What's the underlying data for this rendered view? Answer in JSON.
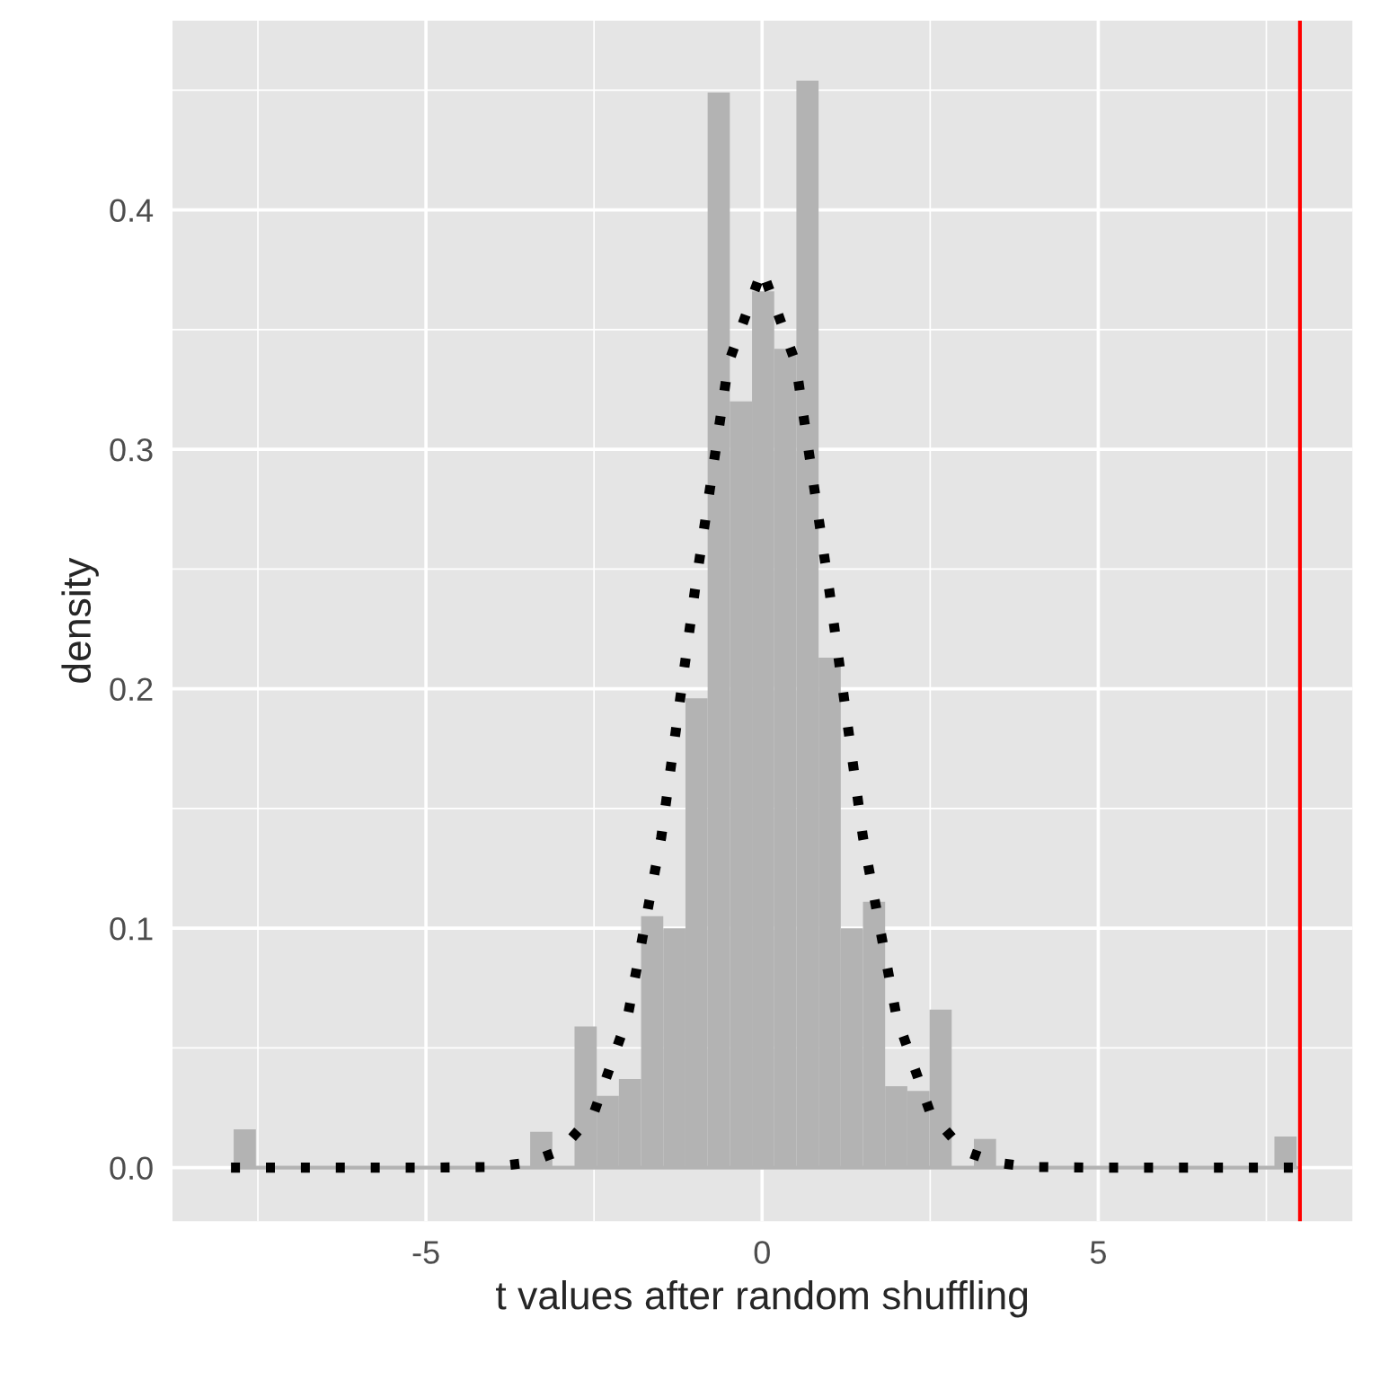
{
  "chart_data": {
    "type": "histogram",
    "xlabel": "t values after random shuffling",
    "ylabel": "density",
    "series": [
      {
        "color": "#b3b3b3",
        "bins": [
          -7.86,
          -7.53,
          -3.45,
          -3.12,
          -2.79,
          -2.46,
          -2.13,
          -1.8,
          -1.47,
          -1.14,
          -0.81,
          -0.48,
          -0.15,
          0.18,
          0.51,
          0.84,
          1.17,
          1.5,
          1.83,
          2.16,
          2.49,
          2.82,
          3.15,
          3.48,
          7.62,
          7.95
        ],
        "values": [
          0.016,
          0,
          0.015,
          0,
          0.059,
          0.03,
          0.037,
          0.105,
          0.1,
          0.196,
          0.449,
          0.32,
          0.366,
          0.342,
          0.454,
          0.213,
          0.1,
          0.111,
          0.034,
          0.032,
          0.066,
          0,
          0.012,
          0,
          0.013
        ]
      },
      {
        "type": "line",
        "color": "#000000",
        "line_style": "dotted",
        "x": [
          -7.9,
          -5,
          -4,
          -3.5,
          -3,
          -2.5,
          -2,
          -1.5,
          -1,
          -0.5,
          0,
          0.5,
          1,
          1.5,
          2,
          2.5,
          3,
          3.5,
          4,
          5,
          7.95
        ],
        "values": [
          0,
          0,
          0.0003,
          0.002,
          0.007,
          0.023,
          0.063,
          0.138,
          0.241,
          0.336,
          0.375,
          0.336,
          0.241,
          0.138,
          0.063,
          0.023,
          0.007,
          0.002,
          0.0003,
          0,
          0
        ]
      }
    ],
    "ref_lines": [
      {
        "axis": "x",
        "value": 8,
        "color": "#ff0000"
      }
    ],
    "xlim": [
      -8.77,
      8.78
    ],
    "ylim": [
      -0.0224,
      0.479
    ],
    "xticks": [
      {
        "value": -5,
        "label": "-5"
      },
      {
        "value": 0,
        "label": "0"
      },
      {
        "value": 5,
        "label": "5"
      }
    ],
    "yticks": [
      {
        "value": 0,
        "label": "0.0"
      },
      {
        "value": 0.1,
        "label": "0.1"
      },
      {
        "value": 0.2,
        "label": "0.2"
      },
      {
        "value": 0.3,
        "label": "0.3"
      },
      {
        "value": 0.4,
        "label": "0.4"
      }
    ],
    "grid": true
  }
}
